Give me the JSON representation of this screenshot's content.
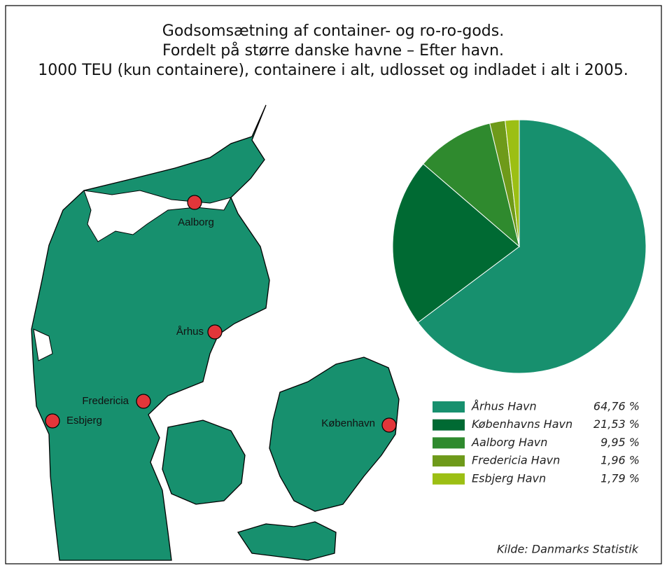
{
  "chart_data": {
    "type": "pie",
    "title": [
      "Godsomsætning af container- og ro-ro-gods.",
      "Fordelt på større danske havne – Efter havn.",
      "1000 TEU (kun containere), containere i alt, udlosset og indladet i alt i 2005."
    ],
    "categories": [
      "Århus Havn",
      "Københavns Havn",
      "Aalborg Havn",
      "Fredericia Havn",
      "Esbjerg Havn"
    ],
    "values": [
      64.76,
      21.53,
      9.95,
      1.96,
      1.79
    ],
    "value_labels": [
      "64,76 %",
      "21,53 %",
      "9,95 %",
      "1,96 %",
      "1,79 %"
    ],
    "colors": [
      "#17906e",
      "#006a33",
      "#2f8a2e",
      "#6e9a1a",
      "#9cbf14"
    ],
    "source": "Kilde: Danmarks Statistik",
    "map_labels": [
      "Aalborg",
      "Århus",
      "Fredericia",
      "Esbjerg",
      "København"
    ]
  }
}
